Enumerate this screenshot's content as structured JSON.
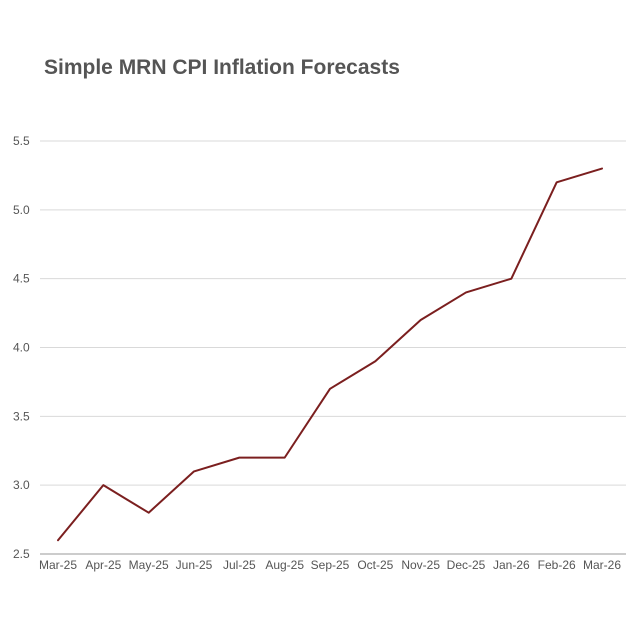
{
  "chart_data": {
    "type": "line",
    "title": "Simple MRN CPI Inflation Forecasts",
    "xlabel": "",
    "ylabel": "",
    "categories": [
      "Mar-25",
      "Apr-25",
      "May-25",
      "Jun-25",
      "Jul-25",
      "Aug-25",
      "Sep-25",
      "Oct-25",
      "Nov-25",
      "Dec-25",
      "Jan-26",
      "Feb-26",
      "Mar-26"
    ],
    "series": [
      {
        "values": [
          2.6,
          3.0,
          2.8,
          3.1,
          3.2,
          3.2,
          3.7,
          3.9,
          4.2,
          4.4,
          4.5,
          5.2,
          5.3
        ],
        "color": "#7b1f1f"
      }
    ],
    "ylim": [
      2.5,
      5.5
    ],
    "yticks": [
      "2.5",
      "3.0",
      "3.5",
      "4.0",
      "4.5",
      "5.0",
      "5.5"
    ],
    "grid": true,
    "legend": "none"
  }
}
